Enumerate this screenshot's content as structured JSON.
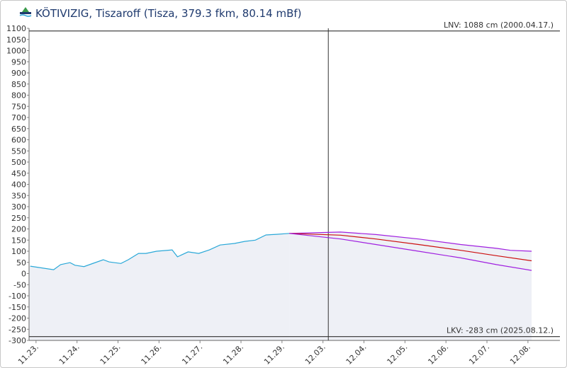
{
  "chart_data": {
    "type": "line",
    "title": "KÖTIVIZIG, Tiszaroff (Tisza, 379.3 fkm, 80.14 mBf)",
    "xlim": [
      -0.17,
      12.78
    ],
    "ylim": [
      -300,
      1100
    ],
    "yticks": [
      -300,
      -250,
      -200,
      -150,
      -100,
      -50,
      0,
      50,
      100,
      150,
      200,
      250,
      300,
      350,
      400,
      450,
      500,
      550,
      600,
      650,
      700,
      750,
      800,
      850,
      900,
      950,
      1000,
      1050,
      1100
    ],
    "xticks": [
      {
        "value": 0,
        "label": "11.23."
      },
      {
        "value": 1,
        "label": "11.24."
      },
      {
        "value": 2,
        "label": "11.25."
      },
      {
        "value": 3,
        "label": "11.26."
      },
      {
        "value": 4,
        "label": "11.27."
      },
      {
        "value": 5,
        "label": "11.28."
      },
      {
        "value": 6,
        "label": "11.29."
      },
      {
        "value": 7,
        "label": "12.03."
      },
      {
        "value": 8,
        "label": "12.04."
      },
      {
        "value": 9,
        "label": "12.05."
      },
      {
        "value": 10,
        "label": "12.06."
      },
      {
        "value": 11,
        "label": "12.07."
      },
      {
        "value": 12,
        "label": "12.08."
      }
    ],
    "marker_x": 7.13,
    "reference_lines": [
      {
        "value": 1088,
        "label": "LNV: 1088 cm (2000.04.17.)"
      },
      {
        "value": -283,
        "label": "LKV: -283 cm (2025.08.12.)"
      }
    ],
    "series": [
      {
        "color": "#2aa8d8",
        "fill": "#eef0f6",
        "x": [
          -0.14,
          0.43,
          0.6,
          0.83,
          0.95,
          1.17,
          1.35,
          1.64,
          1.78,
          2.07,
          2.25,
          2.5,
          2.68,
          2.94,
          3.32,
          3.45,
          3.71,
          3.97,
          4.23,
          4.49,
          4.84,
          5.09,
          5.35,
          5.61,
          5.87,
          6.18
        ],
        "values": [
          33,
          17,
          40,
          49,
          37,
          31,
          43,
          62,
          52,
          45,
          62,
          90,
          90,
          100,
          106,
          75,
          97,
          90,
          106,
          128,
          135,
          144,
          150,
          173,
          176,
          180
        ]
      },
      {
        "color": "#a020e0",
        "fill": "#eef0f6",
        "x": [
          6.18,
          7.43,
          8.29,
          9.33,
          10.36,
          11.23,
          11.57,
          12.09
        ],
        "values": [
          180,
          186,
          175,
          155,
          130,
          113,
          104,
          100
        ]
      },
      {
        "color": "#cc1010",
        "x": [
          6.18,
          7.43,
          8.29,
          9.33,
          10.36,
          11.23,
          12.09
        ],
        "values": [
          180,
          172,
          155,
          130,
          104,
          80,
          57
        ]
      },
      {
        "color": "#a020e0",
        "x": [
          6.18,
          7.43,
          8.29,
          9.33,
          10.36,
          11.23,
          12.09
        ],
        "values": [
          180,
          155,
          130,
          100,
          70,
          40,
          14
        ]
      }
    ]
  }
}
